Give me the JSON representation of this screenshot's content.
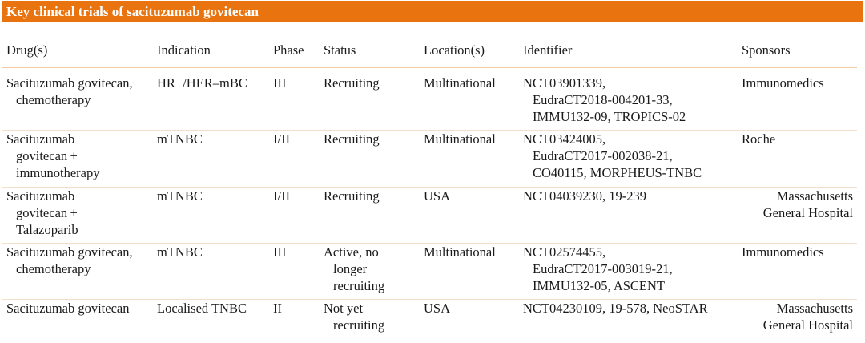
{
  "title": "Key clinical trials of sacituzumab govitecan",
  "columns": [
    "Drug(s)",
    "Indication",
    "Phase",
    "Status",
    "Location(s)",
    "Identifier",
    "Sponsors"
  ],
  "rows": [
    {
      "drug": [
        "Sacituzumab govitecan,",
        "chemotherapy"
      ],
      "indication": [
        "HR+/HER–mBC"
      ],
      "phase": [
        "III"
      ],
      "status": [
        "Recruiting"
      ],
      "location": [
        "Multinational"
      ],
      "identifier": [
        "NCT03901339,",
        "EudraCT2018-004201-33,",
        "IMMU132-09, TROPICS-02"
      ],
      "sponsors": [
        "Immunomedics"
      ]
    },
    {
      "drug": [
        "Sacituzumab",
        "govitecan +",
        "immunotherapy"
      ],
      "indication": [
        "mTNBC"
      ],
      "phase": [
        "I/II"
      ],
      "status": [
        "Recruiting"
      ],
      "location": [
        "Multinational"
      ],
      "identifier": [
        "NCT03424005,",
        "EudraCT2017-002038-21,",
        "CO40115, MORPHEUS-TNBC"
      ],
      "sponsors": [
        "Roche"
      ]
    },
    {
      "drug": [
        "Sacituzumab",
        "govitecan +",
        "Talazoparib"
      ],
      "indication": [
        "mTNBC"
      ],
      "phase": [
        "I/II"
      ],
      "status": [
        "Recruiting"
      ],
      "location": [
        "USA"
      ],
      "identifier": [
        "NCT04039230, 19-239"
      ],
      "sponsors": [
        "Massachusetts",
        "General Hospital"
      ]
    },
    {
      "drug": [
        "Sacituzumab govitecan,",
        "chemotherapy"
      ],
      "indication": [
        "mTNBC"
      ],
      "phase": [
        "III"
      ],
      "status": [
        "Active, no",
        "longer",
        "recruiting"
      ],
      "location": [
        "Multinational"
      ],
      "identifier": [
        "NCT02574455,",
        "EudraCT2017-003019-21,",
        "IMMU132-05, ASCENT"
      ],
      "sponsors": [
        "Immunomedics"
      ]
    },
    {
      "drug": [
        "Sacituzumab govitecan"
      ],
      "indication": [
        "Localised TNBC"
      ],
      "phase": [
        "II"
      ],
      "status": [
        "Not yet",
        "recruiting"
      ],
      "location": [
        "USA"
      ],
      "identifier": [
        "NCT04230109, 19-578, NeoSTAR"
      ],
      "sponsors": [
        "Massachusetts",
        "General Hospital"
      ]
    }
  ],
  "colors": {
    "title_bar": "#E9730F",
    "header_rule": "#F5CBA4",
    "row_rule": "#F4DFCB"
  }
}
